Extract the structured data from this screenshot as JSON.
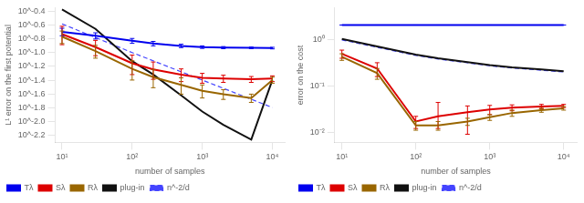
{
  "chart_data": [
    {
      "type": "line",
      "log": true,
      "grid": false,
      "legend": "lower left",
      "xlabel": "number of samples",
      "ylabel": "L¹ error on the first potential",
      "x": [
        10,
        30,
        100,
        200,
        500,
        1000,
        2000,
        5000,
        10000
      ],
      "xlim": [
        8,
        15000
      ],
      "xticks": [
        {
          "value": 10,
          "label": "10¹"
        },
        {
          "value": 100,
          "label": "10²"
        },
        {
          "value": 1000,
          "label": "10³"
        },
        {
          "value": 10000,
          "label": "10⁴"
        }
      ],
      "ylim": [
        0.005011872336272722,
        0.44668359215096315
      ],
      "yticks": [
        {
          "value": 0.00630957344480193,
          "label": "10^-2.2"
        },
        {
          "value": 0.01,
          "label": "10^-2.0"
        },
        {
          "value": 0.015848931924611134,
          "label": "10^-1.8"
        },
        {
          "value": 0.025118864315095794,
          "label": "10^-1.6"
        },
        {
          "value": 0.03981071705534973,
          "label": "10^-1.4"
        },
        {
          "value": 0.06309573444801933,
          "label": "10^-1.2"
        },
        {
          "value": 0.1,
          "label": "10^-1.0"
        },
        {
          "value": 0.15848931924611134,
          "label": "10^-0.8"
        },
        {
          "value": 0.251188643150958,
          "label": "10^-0.6"
        },
        {
          "value": 0.3981071705534972,
          "label": "10^-0.4"
        }
      ],
      "series": [
        {
          "name": "Tλ",
          "color": "#0000ee",
          "values": [
            0.2,
            0.175,
            0.148,
            0.135,
            0.125,
            0.12,
            0.118,
            0.117,
            0.116
          ],
          "error_low": [
            0.025,
            0.018,
            0.012,
            0.01,
            0.007,
            0.005,
            0.004,
            0.003,
            0.003
          ],
          "error_high": [
            0.025,
            0.018,
            0.012,
            0.01,
            0.007,
            0.005,
            0.004,
            0.003,
            0.003
          ]
        },
        {
          "name": "Sλ",
          "color": "#dd0000",
          "values": [
            0.185,
            0.12,
            0.07,
            0.057,
            0.048,
            0.043,
            0.042,
            0.041,
            0.042
          ],
          "error_low": [
            0.055,
            0.03,
            0.022,
            0.016,
            0.01,
            0.007,
            0.005,
            0.004,
            0.004
          ],
          "error_high": [
            0.055,
            0.03,
            0.022,
            0.016,
            0.01,
            0.007,
            0.005,
            0.004,
            0.004
          ]
        },
        {
          "name": "Rλ",
          "color": "#996600",
          "values": [
            0.17,
            0.105,
            0.058,
            0.044,
            0.034,
            0.028,
            0.025,
            0.022,
            0.04
          ],
          "error_low": [
            0.035,
            0.022,
            0.018,
            0.013,
            0.009,
            0.006,
            0.004,
            0.003,
            0.004
          ],
          "error_high": [
            0.035,
            0.022,
            0.018,
            0.013,
            0.009,
            0.006,
            0.004,
            0.003,
            0.004
          ]
        },
        {
          "name": "plug-in",
          "color": "#111111",
          "x": [
            10,
            30,
            100,
            200,
            500,
            1000,
            2000,
            5000,
            10000
          ],
          "values": [
            0.42,
            0.22,
            0.075,
            0.048,
            0.024,
            0.014,
            0.009,
            0.0055,
            0.04
          ]
        },
        {
          "name": "n^-2/d",
          "color": "#4444ff",
          "line_style": "dashed",
          "x": [
            10,
            100,
            1000,
            10000
          ],
          "values": [
            0.26,
            0.1,
            0.04,
            0.016
          ]
        }
      ]
    },
    {
      "type": "line",
      "log": true,
      "grid": false,
      "legend": "lower left",
      "xlabel": "number of samples",
      "ylabel": "error on the cost",
      "x": [
        10,
        30,
        100,
        200,
        500,
        1000,
        2000,
        5000,
        10000
      ],
      "xlim": [
        8,
        15000
      ],
      "xticks": [
        {
          "value": 10,
          "label": "10¹"
        },
        {
          "value": 100,
          "label": "10²"
        },
        {
          "value": 1000,
          "label": "10³"
        },
        {
          "value": 10000,
          "label": "10⁴"
        }
      ],
      "ylim": [
        0.006,
        5.0
      ],
      "yticks": [
        {
          "value": 0.01,
          "label": "10⁻²"
        },
        {
          "value": 0.1,
          "label": "10⁻¹"
        },
        {
          "value": 1,
          "label": "10⁰"
        }
      ],
      "series": [
        {
          "name": "Tλ",
          "color": "#0000ee",
          "values": [
            2.1,
            2.1,
            2.1,
            2.1,
            2.1,
            2.1,
            2.1,
            2.1,
            2.1
          ],
          "error_low": [
            0.0,
            0.0,
            0.0,
            0.0,
            0.0,
            0.0,
            0.0,
            0.0,
            0.0
          ],
          "error_high": [
            0.0,
            0.0,
            0.0,
            0.0,
            0.0,
            0.0,
            0.0,
            0.0,
            0.0
          ]
        },
        {
          "name": "Sλ",
          "color": "#dd0000",
          "values": [
            0.5,
            0.24,
            0.017,
            0.022,
            0.027,
            0.031,
            0.034,
            0.036,
            0.037
          ],
          "error_low": [
            0.1,
            0.08,
            0.005,
            0.01,
            0.018,
            0.007,
            0.005,
            0.004,
            0.003
          ],
          "error_high": [
            0.1,
            0.08,
            0.005,
            0.022,
            0.01,
            0.007,
            0.005,
            0.004,
            0.003
          ]
        },
        {
          "name": "Rλ",
          "color": "#996600",
          "values": [
            0.43,
            0.19,
            0.014,
            0.014,
            0.017,
            0.021,
            0.026,
            0.03,
            0.033
          ],
          "error_low": [
            0.07,
            0.05,
            0.003,
            0.003,
            0.003,
            0.003,
            0.004,
            0.003,
            0.003
          ],
          "error_high": [
            0.07,
            0.05,
            0.003,
            0.003,
            0.003,
            0.003,
            0.004,
            0.003,
            0.003
          ]
        },
        {
          "name": "plug-in",
          "color": "#111111",
          "values": [
            1.05,
            0.72,
            0.48,
            0.4,
            0.33,
            0.285,
            0.255,
            0.228,
            0.21
          ]
        },
        {
          "name": "n^-2/d",
          "color": "#4444ff",
          "line_style": "dashed",
          "values": [
            1.0,
            0.69,
            0.46,
            0.385,
            0.318,
            0.275,
            0.246,
            0.22,
            0.202
          ]
        }
      ]
    }
  ]
}
